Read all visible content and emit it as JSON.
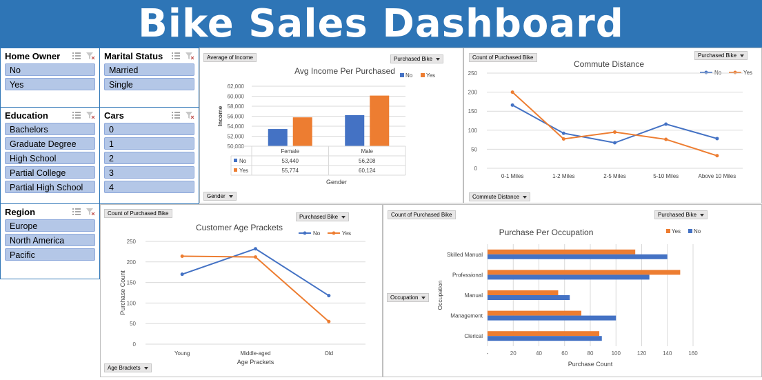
{
  "title": "Bike Sales Dashboard",
  "colors": {
    "no": "#4472c4",
    "yes": "#ed7d31",
    "banner": "#2e75b6",
    "slicer_item": "#b4c7e7"
  },
  "slicers": {
    "home_owner": {
      "title": "Home Owner",
      "items": [
        "No",
        "Yes"
      ]
    },
    "marital_status": {
      "title": "Marital Status",
      "items": [
        "Married",
        "Single"
      ]
    },
    "education": {
      "title": "Education",
      "items": [
        "Bachelors",
        "Graduate Degree",
        "High School",
        "Partial College",
        "Partial High School"
      ]
    },
    "cars": {
      "title": "Cars",
      "items": [
        "0",
        "1",
        "2",
        "3",
        "4"
      ]
    },
    "region": {
      "title": "Region",
      "items": [
        "Europe",
        "North America",
        "Pacific"
      ]
    }
  },
  "field_buttons": {
    "income_value": "Average of Income",
    "income_legend": "Purchased Bike",
    "income_axis": "Gender",
    "commute_value": "Count of Purchased Bike",
    "commute_legend": "Purchased Bike",
    "commute_axis": "Commute Distance",
    "age_value": "Count of Purchased Bike",
    "age_legend": "Purchased Bike",
    "age_axis": "Age Brackets",
    "occ_value": "Count of Purchased Bike",
    "occ_legend": "Purchased Bike",
    "occ_axis": "Occupation"
  },
  "chart_data": [
    {
      "id": "income",
      "type": "bar",
      "title": "Avg Income Per Purchased",
      "xlabel": "Gender",
      "ylabel": "Income",
      "categories": [
        "Female",
        "Male"
      ],
      "series": [
        {
          "name": "No",
          "values": [
            53440,
            56208
          ],
          "labels": [
            "53,440",
            "56,208"
          ]
        },
        {
          "name": "Yes",
          "values": [
            55774,
            60124
          ],
          "labels": [
            "55,774",
            "60,124"
          ]
        }
      ],
      "ylim": [
        50000,
        62000
      ],
      "yticks": [
        "50,000",
        "52,000",
        "54,000",
        "56,000",
        "58,000",
        "60,000",
        "62,000"
      ],
      "data_table": true,
      "legend": "top-right",
      "grid": true
    },
    {
      "id": "commute",
      "type": "line",
      "title": "Commute Distance",
      "categories": [
        "0-1 Miles",
        "1-2 Miles",
        "2-5 Miles",
        "5-10 Miles",
        "Above 10 Miles"
      ],
      "series": [
        {
          "name": "No",
          "values": [
            166,
            92,
            67,
            116,
            78
          ]
        },
        {
          "name": "Yes",
          "values": [
            200,
            77,
            95,
            76,
            33
          ]
        }
      ],
      "ylim": [
        0,
        250
      ],
      "yticks": [
        "0",
        "50",
        "100",
        "150",
        "200",
        "250"
      ],
      "legend": "top-right",
      "grid": true
    },
    {
      "id": "age",
      "type": "line",
      "title": "Customer Age Prackets",
      "xlabel": "Age Prackets",
      "ylabel": "Purchase Count",
      "categories": [
        "Young",
        "Middle-aged",
        "Old"
      ],
      "series": [
        {
          "name": "No",
          "values": [
            170,
            232,
            118
          ]
        },
        {
          "name": "Yes",
          "values": [
            214,
            212,
            55
          ]
        }
      ],
      "ylim": [
        0,
        250
      ],
      "yticks": [
        "0",
        "50",
        "100",
        "150",
        "200",
        "250"
      ],
      "legend": "top-right",
      "grid": true
    },
    {
      "id": "occupation",
      "type": "bar",
      "orientation": "horizontal",
      "title": "Purchase Per Occupation",
      "xlabel": "Purchase Count",
      "ylabel": "Occupation",
      "categories": [
        "Clerical",
        "Management",
        "Manual",
        "Professional",
        "Skilled Manual"
      ],
      "series": [
        {
          "name": "Yes",
          "values": [
            87,
            73,
            55,
            150,
            115
          ]
        },
        {
          "name": "No",
          "values": [
            89,
            100,
            64,
            126,
            140
          ]
        }
      ],
      "xlim": [
        0,
        160
      ],
      "xticks": [
        "-",
        "20",
        "40",
        "60",
        "80",
        "100",
        "120",
        "140",
        "160"
      ],
      "legend": "top-right",
      "grid": true
    }
  ]
}
